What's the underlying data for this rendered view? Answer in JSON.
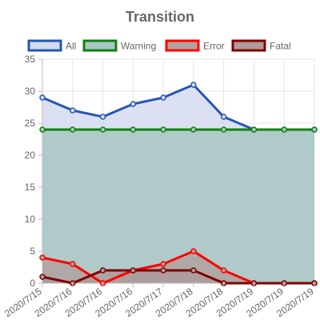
{
  "chart_data": {
    "type": "area",
    "title": "Transition",
    "categories": [
      "2020/7/15",
      "2020/7/16",
      "2020/7/16",
      "2020/7/16",
      "2020/7/17",
      "2020/7/18",
      "2020/7/18",
      "2020/7/19",
      "2020/7/19",
      "2020/7/19"
    ],
    "ylim": [
      0,
      35
    ],
    "yticks": [
      0,
      5,
      10,
      15,
      20,
      25,
      30,
      35
    ],
    "grid": true,
    "legend_position": "top",
    "series": [
      {
        "name": "All",
        "stroke": "#2756b4",
        "fill": "#d5dcf0",
        "values": [
          29,
          27,
          26,
          28,
          29,
          31,
          26,
          24,
          24,
          24
        ]
      },
      {
        "name": "Warning",
        "stroke": "#138013",
        "fill": "#a8c6c3",
        "values": [
          24,
          24,
          24,
          24,
          24,
          24,
          24,
          24,
          24,
          24
        ]
      },
      {
        "name": "Error",
        "stroke": "#ff0000",
        "fill": "#b0a29f",
        "values": [
          4,
          3,
          0,
          2,
          3,
          5,
          2,
          0,
          0,
          0
        ]
      },
      {
        "name": "Fatal",
        "stroke": "#800000",
        "fill": "#ae9b9b",
        "values": [
          1,
          0,
          2,
          2,
          2,
          2,
          0,
          0,
          0,
          0
        ]
      }
    ]
  }
}
